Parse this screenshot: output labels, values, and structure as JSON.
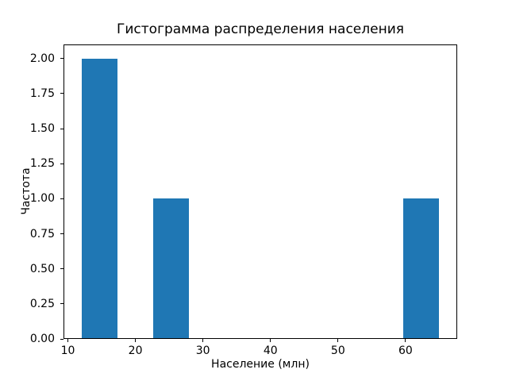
{
  "figure": {
    "background": "#ffffff",
    "spine_color": "#000000",
    "text_color": "#000000"
  },
  "chart_data": {
    "type": "bar",
    "subtype": "histogram",
    "title": "Гистограмма распределения населения",
    "xlabel": "Население (млн)",
    "ylabel": "Частота",
    "bar_color": "#1f77b4",
    "bin_edges": [
      12.0,
      17.3,
      22.6,
      27.9,
      33.2,
      38.5,
      43.8,
      49.1,
      54.4,
      59.7,
      65.0
    ],
    "counts": [
      2,
      0,
      1,
      0,
      0,
      0,
      0,
      0,
      0,
      1
    ],
    "xlim": [
      9.35,
      67.65
    ],
    "ylim": [
      0,
      2.1
    ],
    "xticks": [
      10,
      20,
      30,
      40,
      50,
      60
    ],
    "xtick_labels": [
      "10",
      "20",
      "30",
      "40",
      "50",
      "60"
    ],
    "yticks": [
      0.0,
      0.25,
      0.5,
      0.75,
      1.0,
      1.25,
      1.5,
      1.75,
      2.0
    ],
    "ytick_labels": [
      "0.00",
      "0.25",
      "0.50",
      "0.75",
      "1.00",
      "1.25",
      "1.50",
      "1.75",
      "2.00"
    ],
    "grid": false,
    "legend": null
  }
}
